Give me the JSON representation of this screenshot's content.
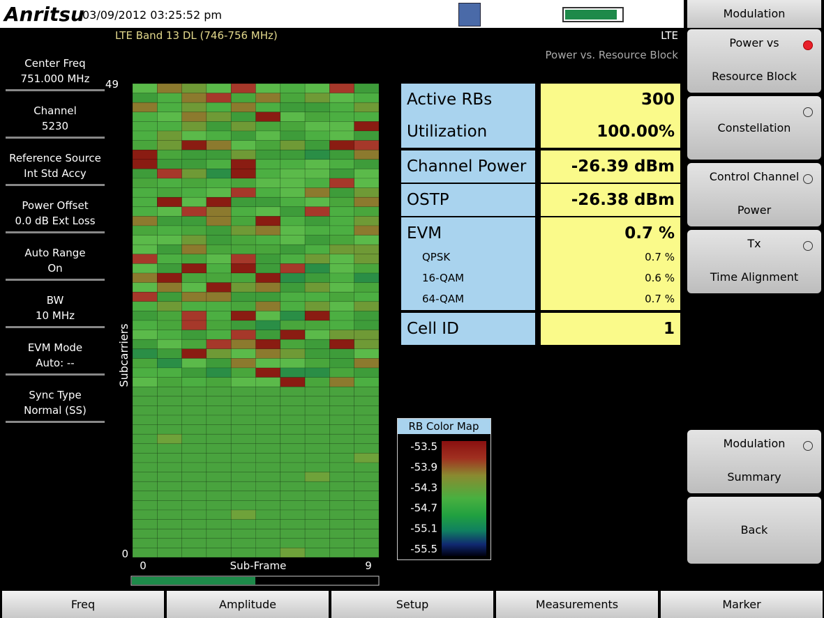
{
  "header": {
    "logo": "Anritsu",
    "datetime": "03/09/2012 03:25:52 pm"
  },
  "band": "LTE Band 13 DL (746-756 MHz)",
  "mode": "LTE",
  "view": "Power vs. Resource Block",
  "left_panel": [
    {
      "label": "Center Freq",
      "value": "751.000 MHz"
    },
    {
      "label": "Channel",
      "value": "5230"
    },
    {
      "label": "Reference Source",
      "value": "Int Std Accy"
    },
    {
      "label": "Power Offset",
      "value": "0.0 dB Ext Loss"
    },
    {
      "label": "Auto Range",
      "value": "On"
    },
    {
      "label": "BW",
      "value": "10 MHz"
    },
    {
      "label": "EVM Mode",
      "value": "Auto: --"
    },
    {
      "label": "Sync Type",
      "value": "Normal (SS)"
    }
  ],
  "plot": {
    "y_label": "Subcarriers",
    "y_max": 49,
    "y_min": 0,
    "x_label": "Sub-Frame",
    "x_min": 0,
    "x_max": 9
  },
  "table": {
    "rows": [
      {
        "label": "Active RBs",
        "value": "300"
      },
      {
        "label": "Utilization",
        "value": "100.00%"
      },
      {
        "label": "Channel Power",
        "value": "-26.39 dBm"
      },
      {
        "label": "OSTP",
        "value": "-26.38 dBm"
      },
      {
        "label": "EVM",
        "value": "0.7 %"
      },
      {
        "label": "Cell ID",
        "value": "1"
      }
    ],
    "evm_sub": [
      {
        "label": "QPSK",
        "value": "0.7 %"
      },
      {
        "label": "16-QAM",
        "value": "0.6 %"
      },
      {
        "label": "64-QAM",
        "value": "0.7 %"
      }
    ]
  },
  "colormap": {
    "title": "RB Color Map",
    "labels": [
      -53.5,
      -53.9,
      -54.3,
      -54.7,
      -55.1,
      -55.5
    ]
  },
  "menu": {
    "title": "Modulation",
    "keys": [
      {
        "line1": "Power vs",
        "line2": "Resource Block"
      },
      {
        "line1": "Constellation"
      },
      {
        "line1": "Control Channel",
        "line2": "Power"
      },
      {
        "line1": "Tx",
        "line2": "Time Alignment"
      },
      {
        "line1": "Modulation",
        "line2": "Summary"
      },
      {
        "line1": "Back"
      }
    ]
  },
  "bottom": [
    "Freq",
    "Amplitude",
    "Setup",
    "Measurements",
    "Marker"
  ]
}
